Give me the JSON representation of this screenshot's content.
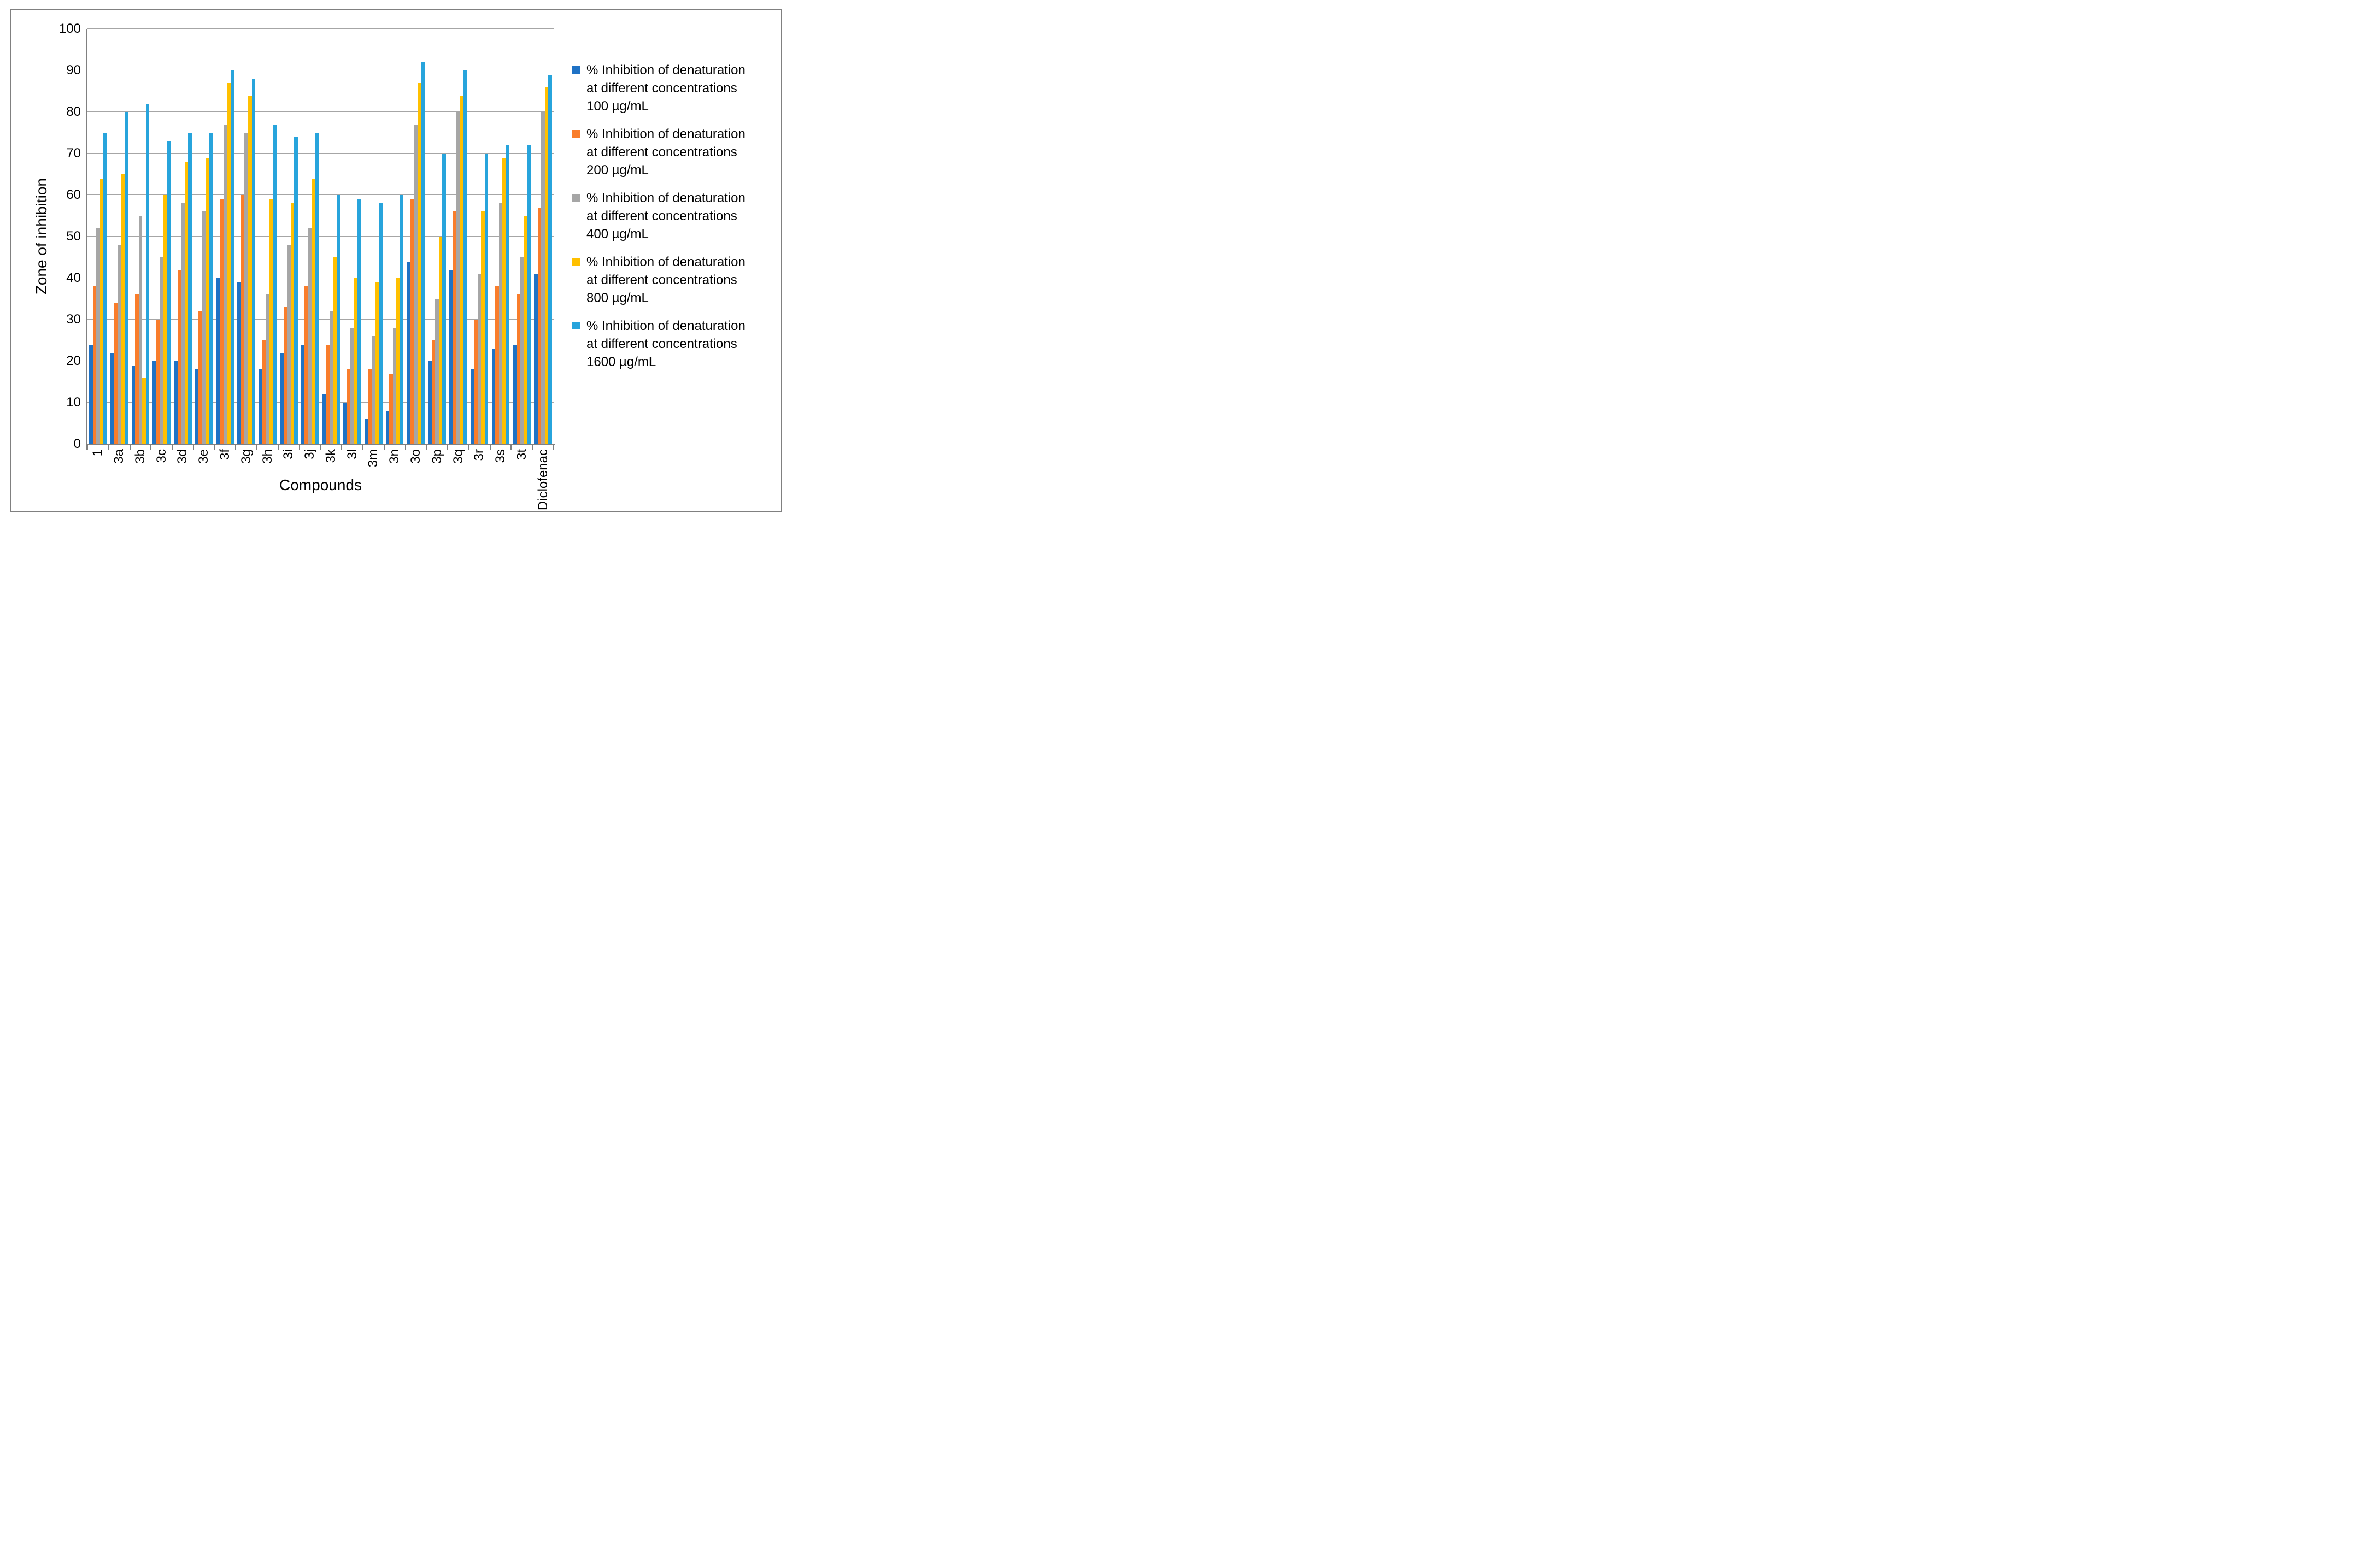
{
  "chart_data": {
    "type": "bar",
    "title": "",
    "xlabel": "Compounds",
    "ylabel": "Zone of inhibition",
    "ylim": [
      0,
      100
    ],
    "ytick_step": 10,
    "yticks": [
      0,
      10,
      20,
      30,
      40,
      50,
      60,
      70,
      80,
      90,
      100
    ],
    "grid": true,
    "legend_position": "right",
    "categories": [
      "1",
      "3a",
      "3b",
      "3c",
      "3d",
      "3e",
      "3f",
      "3g",
      "3h",
      "3i",
      "3j",
      "3k",
      "3l",
      "3m",
      "3n",
      "3o",
      "3p",
      "3q",
      "3r",
      "3s",
      "3t",
      "Diclofenac"
    ],
    "series": [
      {
        "name": "% Inhibition of denaturation at different concentrations 100 µg/mL",
        "label_lines": [
          "% Inhibition of denaturation",
          "at different concentrations",
          "100 µg/mL"
        ],
        "color": "#1f72c5",
        "values": [
          24,
          22,
          19,
          20,
          20,
          18,
          40,
          39,
          18,
          22,
          24,
          12,
          10,
          6,
          8,
          44,
          20,
          42,
          18,
          23,
          24,
          41
        ]
      },
      {
        "name": "% Inhibition of denaturation at different concentrations 200 µg/mL",
        "label_lines": [
          "% Inhibition of denaturation",
          "at different concentrations",
          "200 µg/mL"
        ],
        "color": "#f97d2b",
        "values": [
          38,
          34,
          36,
          30,
          42,
          32,
          59,
          60,
          25,
          33,
          38,
          24,
          18,
          18,
          17,
          59,
          25,
          56,
          30,
          38,
          36,
          57
        ]
      },
      {
        "name": "% Inhibition of denaturation at different concentrations 400 µg/mL",
        "label_lines": [
          "% Inhibition of denaturation",
          "at different concentrations",
          "400 µg/mL"
        ],
        "color": "#a6a6a6",
        "values": [
          52,
          48,
          55,
          45,
          58,
          56,
          77,
          75,
          36,
          48,
          52,
          32,
          28,
          26,
          28,
          77,
          35,
          80,
          41,
          58,
          45,
          80
        ]
      },
      {
        "name": "% Inhibition of denaturation at different concentrations 800 µg/mL",
        "label_lines": [
          "% Inhibition of denaturation",
          "at different concentrations",
          "800 µg/mL"
        ],
        "color": "#ffc000",
        "values": [
          64,
          65,
          16,
          60,
          68,
          69,
          87,
          84,
          59,
          58,
          64,
          45,
          40,
          39,
          40,
          87,
          50,
          84,
          56,
          69,
          55,
          86
        ]
      },
      {
        "name": "% Inhibition of denaturation at different concentrations 1600 µg/mL",
        "label_lines": [
          "% Inhibition of denaturation",
          "at different concentrations",
          "1600 µg/mL"
        ],
        "color": "#27a4dc",
        "values": [
          75,
          80,
          82,
          73,
          75,
          75,
          90,
          88,
          77,
          74,
          75,
          60,
          59,
          58,
          60,
          92,
          70,
          90,
          70,
          72,
          72,
          89
        ]
      }
    ]
  },
  "colors": {
    "axis": "#808080",
    "gridline": "#a6a6a6",
    "frame_border": "#808080",
    "background": "#ffffff",
    "text": "#000000"
  }
}
